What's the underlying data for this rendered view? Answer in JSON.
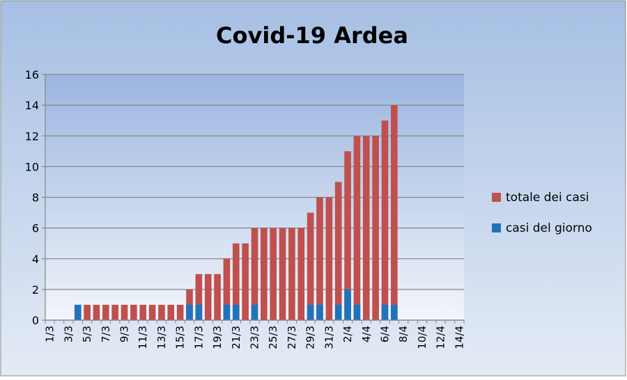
{
  "chart_data": {
    "type": "bar",
    "title": "Covid-19 Ardea",
    "ylim": [
      0,
      16
    ],
    "yticks": [
      0,
      2,
      4,
      6,
      8,
      10,
      12,
      14,
      16
    ],
    "grid": true,
    "legend_position": "right",
    "categories": [
      "1/3",
      "2/3",
      "3/3",
      "4/3",
      "5/3",
      "6/3",
      "7/3",
      "8/3",
      "9/3",
      "10/3",
      "11/3",
      "12/3",
      "13/3",
      "14/3",
      "15/3",
      "16/3",
      "17/3",
      "18/3",
      "19/3",
      "20/3",
      "21/3",
      "22/3",
      "23/3",
      "24/3",
      "25/3",
      "26/3",
      "27/3",
      "28/3",
      "29/3",
      "30/3",
      "31/3",
      "1/4",
      "2/4",
      "3/4",
      "4/4",
      "5/4",
      "6/4",
      "7/4",
      "8/4",
      "9/4",
      "10/4",
      "11/4",
      "12/4",
      "13/4",
      "14/4"
    ],
    "xtick_labels": [
      "1/3",
      "3/3",
      "5/3",
      "7/3",
      "9/3",
      "11/3",
      "13/3",
      "15/3",
      "17/3",
      "19/3",
      "21/3",
      "23/3",
      "25/3",
      "27/3",
      "29/3",
      "31/3",
      "2/4",
      "4/4",
      "6/4",
      "8/4",
      "10/4",
      "12/4",
      "14/4"
    ],
    "series": [
      {
        "name": "totale dei casi",
        "color": "#c0504d",
        "values": [
          0,
          0,
          0,
          1,
          1,
          1,
          1,
          1,
          1,
          1,
          1,
          1,
          1,
          1,
          1,
          2,
          3,
          3,
          3,
          4,
          5,
          5,
          6,
          6,
          6,
          6,
          6,
          6,
          7,
          8,
          8,
          9,
          11,
          12,
          12,
          12,
          13,
          14,
          0,
          0,
          0,
          0,
          0,
          0,
          0
        ]
      },
      {
        "name": "casi del giorno",
        "color": "#1f73bd",
        "values": [
          0,
          0,
          0,
          1,
          0,
          0,
          0,
          0,
          0,
          0,
          0,
          0,
          0,
          0,
          0,
          1,
          1,
          0,
          0,
          1,
          1,
          0,
          1,
          0,
          0,
          0,
          0,
          0,
          1,
          1,
          0,
          1,
          2,
          1,
          0,
          0,
          1,
          1,
          0,
          0,
          0,
          0,
          0,
          0,
          0
        ]
      }
    ]
  }
}
